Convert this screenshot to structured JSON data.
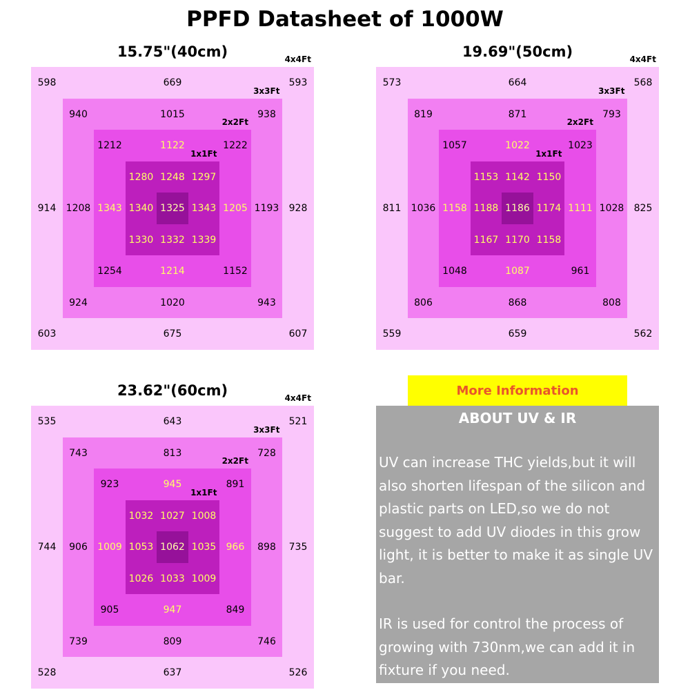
{
  "title": "PPFD Datasheet of 1000W",
  "panels": [
    {
      "heading": "15.75\"(40cm)",
      "rings": [
        {
          "label": "4x4Ft",
          "top": [
            598,
            669,
            593
          ],
          "middle": [
            914,
            928
          ],
          "bottom": [
            603,
            675,
            607
          ]
        },
        {
          "label": "3x3Ft",
          "top": [
            940,
            1015,
            938
          ],
          "middle": [
            1208,
            1193
          ],
          "bottom": [
            924,
            1020,
            943
          ]
        },
        {
          "label": "2x2Ft",
          "top": [
            1212,
            1122,
            1222
          ],
          "middle": [
            1343,
            1205
          ],
          "bottom": [
            1254,
            1214,
            1152
          ]
        },
        {
          "label": "1x1Ft",
          "rows": [
            [
              1280,
              1248,
              1297
            ],
            [
              1340,
              1325,
              1343
            ],
            [
              1330,
              1332,
              1339
            ]
          ]
        }
      ]
    },
    {
      "heading": "19.69\"(50cm)",
      "rings": [
        {
          "label": "4x4Ft",
          "top": [
            573,
            664,
            568
          ],
          "middle": [
            811,
            825
          ],
          "bottom": [
            559,
            659,
            562
          ]
        },
        {
          "label": "3x3Ft",
          "top": [
            819,
            871,
            793
          ],
          "middle": [
            1036,
            1028
          ],
          "bottom": [
            806,
            868,
            808
          ]
        },
        {
          "label": "2x2Ft",
          "top": [
            1057,
            1022,
            1023
          ],
          "middle": [
            1158,
            1111
          ],
          "bottom": [
            1048,
            1087,
            961
          ]
        },
        {
          "label": "1x1Ft",
          "rows": [
            [
              1153,
              1142,
              1150
            ],
            [
              1188,
              1186,
              1174
            ],
            [
              1167,
              1170,
              1158
            ]
          ]
        }
      ]
    },
    {
      "heading": "23.62\"(60cm)",
      "rings": [
        {
          "label": "4x4Ft",
          "top": [
            535,
            643,
            521
          ],
          "middle": [
            744,
            735
          ],
          "bottom": [
            528,
            637,
            526
          ]
        },
        {
          "label": "3x3Ft",
          "top": [
            743,
            813,
            728
          ],
          "middle": [
            906,
            898
          ],
          "bottom": [
            739,
            809,
            746
          ]
        },
        {
          "label": "2x2Ft",
          "top": [
            923,
            945,
            891
          ],
          "middle": [
            1009,
            966
          ],
          "bottom": [
            905,
            947,
            849
          ]
        },
        {
          "label": "1x1Ft",
          "rows": [
            [
              1032,
              1027,
              1008
            ],
            [
              1053,
              1062,
              1035
            ],
            [
              1026,
              1033,
              1009
            ]
          ]
        }
      ]
    }
  ],
  "info": {
    "button": "More Information",
    "heading": "ABOUT UV & IR",
    "paragraphs": [
      "UV can increase THC yields,but it will also shorten lifespan of the silicon and plastic parts on LED,so we do not suggest to add UV diodes in this grow light, it is better to make it as single UV bar.",
      "IR is used for control the process of growing with 730nm,we can add it in fixture if you need."
    ]
  }
}
